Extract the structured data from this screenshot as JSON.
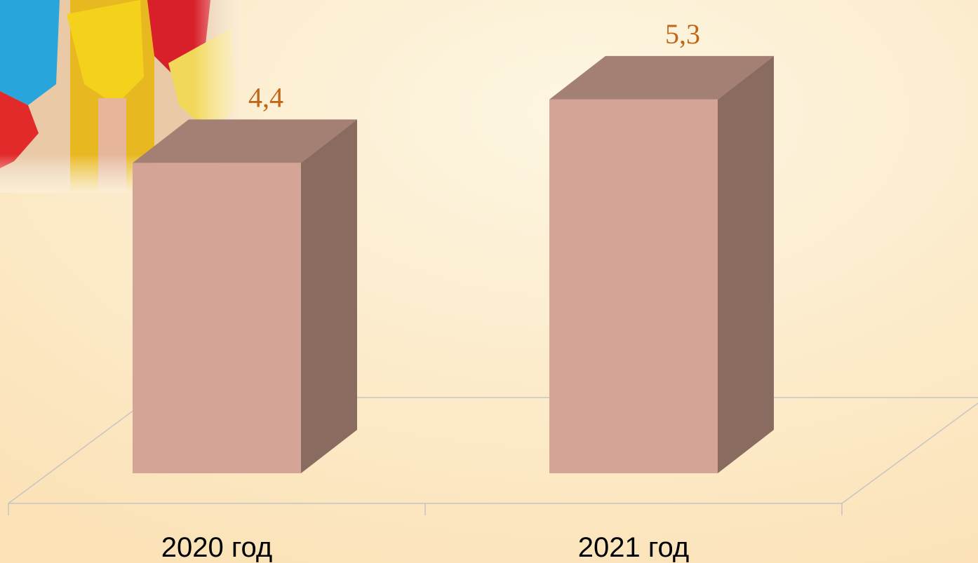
{
  "chart_data": {
    "type": "bar",
    "categories": [
      "2020 год",
      "2021 год"
    ],
    "values": [
      4.4,
      5.3
    ],
    "value_labels": [
      "4,4",
      "5,3"
    ],
    "color": "#d4a597"
  }
}
